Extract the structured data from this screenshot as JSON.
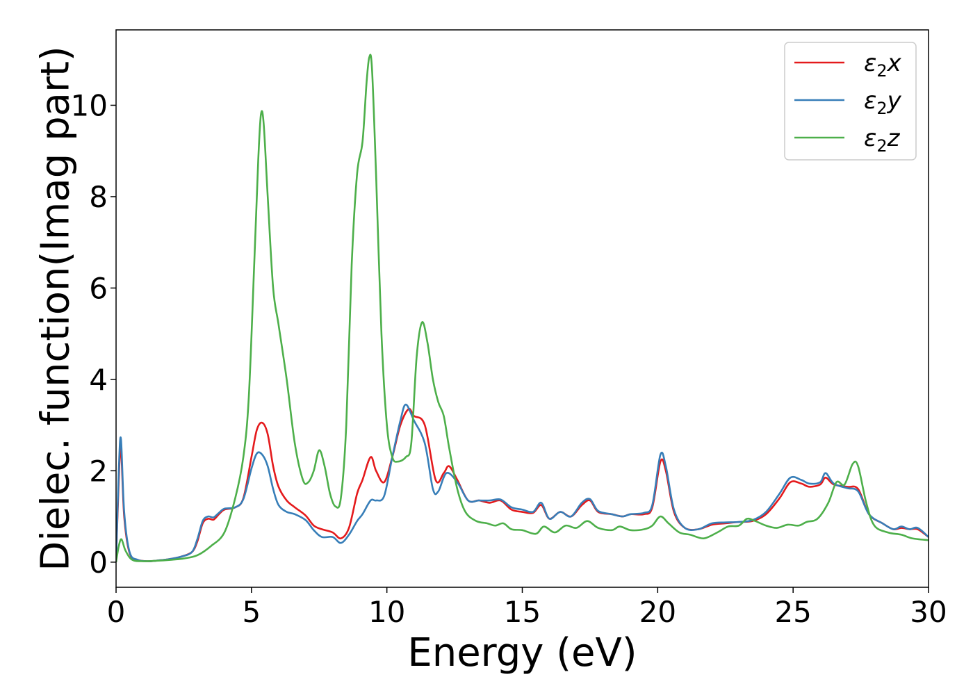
{
  "chart_data": {
    "type": "line",
    "xlabel": "Energy (eV)",
    "ylabel": "Dielec. function(Imag part)",
    "xlim": [
      0,
      30
    ],
    "ylim": [
      -0.55,
      11.65
    ],
    "xticks": [
      0,
      5,
      10,
      15,
      20,
      25,
      30
    ],
    "yticks": [
      0,
      2,
      4,
      6,
      8,
      10
    ],
    "grid": false,
    "legend_position": "top-right",
    "series": [
      {
        "name": "ε₂x",
        "legend": {
          "base": "ε",
          "sub": "2",
          "var": "x"
        },
        "color": "#e41a1c",
        "points": [
          [
            0,
            0
          ],
          [
            0.1,
            1.8
          ],
          [
            0.18,
            2.5
          ],
          [
            0.3,
            1.0
          ],
          [
            0.5,
            0.2
          ],
          [
            0.8,
            0.05
          ],
          [
            1.2,
            0.02
          ],
          [
            1.6,
            0.04
          ],
          [
            2.0,
            0.07
          ],
          [
            2.4,
            0.12
          ],
          [
            2.8,
            0.22
          ],
          [
            3.0,
            0.45
          ],
          [
            3.2,
            0.85
          ],
          [
            3.4,
            0.95
          ],
          [
            3.6,
            0.93
          ],
          [
            3.8,
            1.05
          ],
          [
            4.0,
            1.15
          ],
          [
            4.4,
            1.2
          ],
          [
            4.7,
            1.4
          ],
          [
            5.0,
            2.3
          ],
          [
            5.2,
            2.9
          ],
          [
            5.4,
            3.05
          ],
          [
            5.6,
            2.8
          ],
          [
            5.8,
            2.1
          ],
          [
            6.0,
            1.65
          ],
          [
            6.3,
            1.35
          ],
          [
            6.6,
            1.2
          ],
          [
            7.0,
            1.02
          ],
          [
            7.3,
            0.8
          ],
          [
            7.6,
            0.72
          ],
          [
            8.0,
            0.65
          ],
          [
            8.3,
            0.52
          ],
          [
            8.6,
            0.75
          ],
          [
            8.9,
            1.5
          ],
          [
            9.1,
            1.8
          ],
          [
            9.4,
            2.3
          ],
          [
            9.6,
            2.0
          ],
          [
            9.9,
            1.75
          ],
          [
            10.2,
            2.3
          ],
          [
            10.5,
            3.0
          ],
          [
            10.8,
            3.35
          ],
          [
            11.0,
            3.2
          ],
          [
            11.4,
            3.0
          ],
          [
            11.8,
            1.8
          ],
          [
            12.1,
            1.95
          ],
          [
            12.3,
            2.1
          ],
          [
            12.6,
            1.8
          ],
          [
            13.0,
            1.35
          ],
          [
            13.4,
            1.35
          ],
          [
            13.8,
            1.3
          ],
          [
            14.2,
            1.35
          ],
          [
            14.6,
            1.15
          ],
          [
            15.0,
            1.1
          ],
          [
            15.4,
            1.08
          ],
          [
            15.7,
            1.25
          ],
          [
            16.0,
            0.95
          ],
          [
            16.4,
            1.1
          ],
          [
            16.8,
            1.0
          ],
          [
            17.2,
            1.25
          ],
          [
            17.5,
            1.35
          ],
          [
            17.8,
            1.1
          ],
          [
            18.3,
            1.05
          ],
          [
            18.7,
            1.0
          ],
          [
            19.0,
            1.05
          ],
          [
            19.5,
            1.05
          ],
          [
            19.8,
            1.2
          ],
          [
            20.1,
            2.2
          ],
          [
            20.3,
            2.0
          ],
          [
            20.6,
            1.1
          ],
          [
            21.0,
            0.75
          ],
          [
            21.5,
            0.72
          ],
          [
            22.0,
            0.82
          ],
          [
            22.5,
            0.85
          ],
          [
            23.0,
            0.88
          ],
          [
            23.5,
            0.9
          ],
          [
            24.0,
            1.05
          ],
          [
            24.5,
            1.4
          ],
          [
            24.9,
            1.75
          ],
          [
            25.3,
            1.72
          ],
          [
            25.6,
            1.65
          ],
          [
            26.0,
            1.7
          ],
          [
            26.2,
            1.85
          ],
          [
            26.5,
            1.7
          ],
          [
            27.0,
            1.65
          ],
          [
            27.4,
            1.6
          ],
          [
            27.8,
            1.05
          ],
          [
            28.3,
            0.85
          ],
          [
            28.7,
            0.72
          ],
          [
            29.0,
            0.75
          ],
          [
            29.3,
            0.72
          ],
          [
            29.6,
            0.72
          ],
          [
            30.0,
            0.55
          ]
        ]
      },
      {
        "name": "ε₂y",
        "legend": {
          "base": "ε",
          "sub": "2",
          "var": "y"
        },
        "color": "#377eb8",
        "points": [
          [
            0,
            0
          ],
          [
            0.1,
            2.0
          ],
          [
            0.18,
            2.7
          ],
          [
            0.3,
            1.1
          ],
          [
            0.5,
            0.22
          ],
          [
            0.8,
            0.05
          ],
          [
            1.2,
            0.02
          ],
          [
            1.6,
            0.04
          ],
          [
            2.0,
            0.07
          ],
          [
            2.4,
            0.12
          ],
          [
            2.8,
            0.22
          ],
          [
            3.0,
            0.5
          ],
          [
            3.2,
            0.9
          ],
          [
            3.4,
            1.0
          ],
          [
            3.6,
            0.98
          ],
          [
            3.8,
            1.08
          ],
          [
            4.0,
            1.17
          ],
          [
            4.4,
            1.2
          ],
          [
            4.7,
            1.38
          ],
          [
            5.0,
            2.05
          ],
          [
            5.2,
            2.38
          ],
          [
            5.4,
            2.35
          ],
          [
            5.6,
            2.1
          ],
          [
            5.8,
            1.6
          ],
          [
            6.0,
            1.25
          ],
          [
            6.3,
            1.1
          ],
          [
            6.6,
            1.05
          ],
          [
            7.0,
            0.92
          ],
          [
            7.3,
            0.7
          ],
          [
            7.6,
            0.55
          ],
          [
            8.0,
            0.55
          ],
          [
            8.3,
            0.42
          ],
          [
            8.6,
            0.6
          ],
          [
            8.9,
            0.9
          ],
          [
            9.1,
            1.05
          ],
          [
            9.4,
            1.35
          ],
          [
            9.6,
            1.35
          ],
          [
            9.9,
            1.45
          ],
          [
            10.2,
            2.3
          ],
          [
            10.5,
            3.1
          ],
          [
            10.7,
            3.45
          ],
          [
            11.0,
            3.1
          ],
          [
            11.4,
            2.6
          ],
          [
            11.7,
            1.6
          ],
          [
            11.9,
            1.55
          ],
          [
            12.2,
            1.95
          ],
          [
            12.6,
            1.75
          ],
          [
            13.0,
            1.35
          ],
          [
            13.4,
            1.35
          ],
          [
            13.8,
            1.35
          ],
          [
            14.2,
            1.37
          ],
          [
            14.6,
            1.2
          ],
          [
            15.0,
            1.15
          ],
          [
            15.4,
            1.1
          ],
          [
            15.7,
            1.3
          ],
          [
            16.0,
            0.95
          ],
          [
            16.4,
            1.1
          ],
          [
            16.8,
            1.0
          ],
          [
            17.2,
            1.3
          ],
          [
            17.5,
            1.38
          ],
          [
            17.8,
            1.12
          ],
          [
            18.3,
            1.05
          ],
          [
            18.7,
            1.0
          ],
          [
            19.0,
            1.05
          ],
          [
            19.5,
            1.08
          ],
          [
            19.8,
            1.25
          ],
          [
            20.1,
            2.35
          ],
          [
            20.3,
            2.1
          ],
          [
            20.6,
            1.15
          ],
          [
            21.0,
            0.75
          ],
          [
            21.5,
            0.72
          ],
          [
            22.0,
            0.85
          ],
          [
            22.5,
            0.87
          ],
          [
            23.0,
            0.88
          ],
          [
            23.5,
            0.92
          ],
          [
            24.0,
            1.1
          ],
          [
            24.5,
            1.5
          ],
          [
            24.9,
            1.85
          ],
          [
            25.3,
            1.8
          ],
          [
            25.6,
            1.72
          ],
          [
            26.0,
            1.75
          ],
          [
            26.2,
            1.95
          ],
          [
            26.5,
            1.72
          ],
          [
            27.0,
            1.62
          ],
          [
            27.4,
            1.55
          ],
          [
            27.8,
            1.05
          ],
          [
            28.3,
            0.85
          ],
          [
            28.7,
            0.72
          ],
          [
            29.0,
            0.78
          ],
          [
            29.3,
            0.72
          ],
          [
            29.6,
            0.75
          ],
          [
            30.0,
            0.55
          ]
        ]
      },
      {
        "name": "ε₂z",
        "legend": {
          "base": "ε",
          "sub": "2",
          "var": "z"
        },
        "color": "#4daf4a",
        "points": [
          [
            0,
            0
          ],
          [
            0.1,
            0.35
          ],
          [
            0.2,
            0.5
          ],
          [
            0.35,
            0.25
          ],
          [
            0.6,
            0.05
          ],
          [
            1.0,
            0.02
          ],
          [
            1.5,
            0.03
          ],
          [
            2.0,
            0.05
          ],
          [
            2.5,
            0.08
          ],
          [
            3.0,
            0.15
          ],
          [
            3.5,
            0.35
          ],
          [
            4.0,
            0.65
          ],
          [
            4.4,
            1.4
          ],
          [
            4.7,
            2.3
          ],
          [
            4.9,
            3.6
          ],
          [
            5.1,
            6.5
          ],
          [
            5.25,
            8.8
          ],
          [
            5.35,
            9.8
          ],
          [
            5.45,
            9.6
          ],
          [
            5.6,
            8.0
          ],
          [
            5.8,
            6.0
          ],
          [
            6.0,
            5.2
          ],
          [
            6.3,
            4.0
          ],
          [
            6.6,
            2.6
          ],
          [
            6.9,
            1.8
          ],
          [
            7.1,
            1.75
          ],
          [
            7.3,
            2.0
          ],
          [
            7.5,
            2.45
          ],
          [
            7.7,
            2.1
          ],
          [
            7.9,
            1.5
          ],
          [
            8.1,
            1.22
          ],
          [
            8.3,
            1.4
          ],
          [
            8.5,
            3.0
          ],
          [
            8.7,
            6.5
          ],
          [
            8.9,
            8.5
          ],
          [
            9.1,
            9.2
          ],
          [
            9.25,
            10.5
          ],
          [
            9.35,
            11.05
          ],
          [
            9.45,
            10.8
          ],
          [
            9.6,
            8.5
          ],
          [
            9.8,
            5.0
          ],
          [
            10.0,
            3.0
          ],
          [
            10.2,
            2.3
          ],
          [
            10.4,
            2.2
          ],
          [
            10.7,
            2.3
          ],
          [
            10.9,
            2.6
          ],
          [
            11.1,
            4.5
          ],
          [
            11.3,
            5.25
          ],
          [
            11.5,
            4.8
          ],
          [
            11.7,
            4.0
          ],
          [
            11.9,
            3.5
          ],
          [
            12.1,
            3.2
          ],
          [
            12.3,
            2.5
          ],
          [
            12.6,
            1.6
          ],
          [
            12.9,
            1.1
          ],
          [
            13.3,
            0.9
          ],
          [
            13.7,
            0.85
          ],
          [
            14.0,
            0.8
          ],
          [
            14.3,
            0.85
          ],
          [
            14.6,
            0.72
          ],
          [
            15.0,
            0.7
          ],
          [
            15.5,
            0.62
          ],
          [
            15.8,
            0.78
          ],
          [
            16.2,
            0.65
          ],
          [
            16.6,
            0.8
          ],
          [
            17.0,
            0.75
          ],
          [
            17.4,
            0.9
          ],
          [
            17.8,
            0.75
          ],
          [
            18.3,
            0.7
          ],
          [
            18.6,
            0.78
          ],
          [
            19.0,
            0.7
          ],
          [
            19.5,
            0.72
          ],
          [
            19.8,
            0.8
          ],
          [
            20.1,
            1.0
          ],
          [
            20.4,
            0.85
          ],
          [
            20.8,
            0.65
          ],
          [
            21.2,
            0.6
          ],
          [
            21.7,
            0.52
          ],
          [
            22.2,
            0.65
          ],
          [
            22.6,
            0.78
          ],
          [
            23.0,
            0.8
          ],
          [
            23.3,
            0.95
          ],
          [
            23.6,
            0.9
          ],
          [
            24.0,
            0.8
          ],
          [
            24.4,
            0.75
          ],
          [
            24.8,
            0.82
          ],
          [
            25.2,
            0.8
          ],
          [
            25.5,
            0.88
          ],
          [
            25.9,
            0.95
          ],
          [
            26.3,
            1.3
          ],
          [
            26.6,
            1.75
          ],
          [
            26.9,
            1.7
          ],
          [
            27.2,
            2.15
          ],
          [
            27.4,
            2.1
          ],
          [
            27.7,
            1.3
          ],
          [
            28.0,
            0.8
          ],
          [
            28.5,
            0.65
          ],
          [
            29.0,
            0.6
          ],
          [
            29.4,
            0.52
          ],
          [
            30.0,
            0.48
          ]
        ]
      }
    ]
  }
}
